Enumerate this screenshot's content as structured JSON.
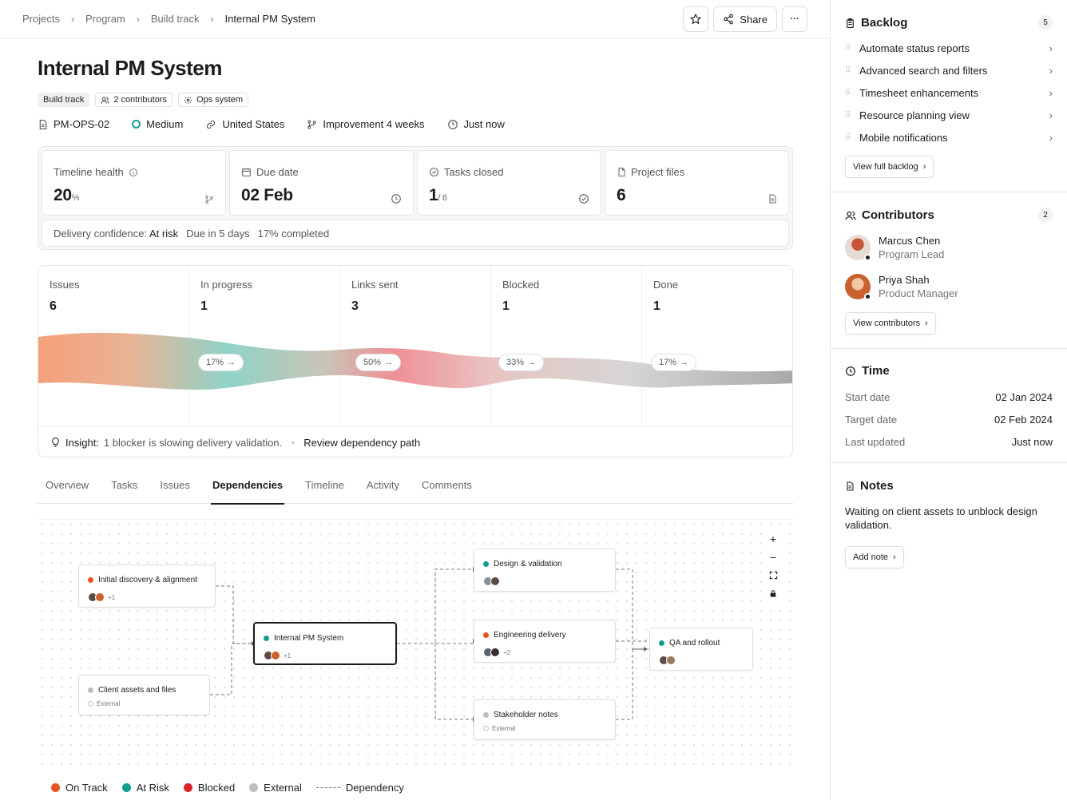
{
  "breadcrumbs": [
    "Projects",
    "Program",
    "Build track",
    "Internal PM System"
  ],
  "toolbar": {
    "share_label": "Share",
    "more_label": "···"
  },
  "project": {
    "title": "Internal PM System",
    "tags": [
      "Build track",
      "2 contributors",
      "Ops system"
    ],
    "meta": {
      "id": "PM-OPS-02",
      "priority": "Medium",
      "location": "United States",
      "branch": "Improvement 4 weeks",
      "updated": "Just now"
    }
  },
  "stats": {
    "timeline_health": {
      "label": "Timeline health",
      "value": "20",
      "unit": "%"
    },
    "due_date": {
      "label": "Due date",
      "value": "02 Feb"
    },
    "tasks_closed": {
      "label": "Tasks closed",
      "value": "1",
      "total": "/ 6"
    },
    "project_files": {
      "label": "Project files",
      "value": "6"
    },
    "confidence": {
      "label": "Delivery confidence:",
      "value": "At risk",
      "due": "Due in 5 days",
      "completed": "17% completed"
    }
  },
  "flow": {
    "columns": [
      {
        "label": "Issues",
        "value": "6"
      },
      {
        "label": "In progress",
        "value": "1"
      },
      {
        "label": "Links sent",
        "value": "3"
      },
      {
        "label": "Blocked",
        "value": "1"
      },
      {
        "label": "Done",
        "value": "1"
      }
    ],
    "rates": [
      "17%",
      "50%",
      "33%",
      "17%"
    ],
    "insight": {
      "label": "Insight:",
      "text": "1 blocker is slowing delivery validation.",
      "link": "Review dependency path"
    }
  },
  "tabs": [
    "Overview",
    "Tasks",
    "Issues",
    "Dependencies",
    "Timeline",
    "Activity",
    "Comments"
  ],
  "active_tab": "Dependencies",
  "graph": {
    "nodes": {
      "discovery": {
        "title": "Initial discovery & alignment",
        "more": "+1"
      },
      "client": {
        "title": "Client assets and files",
        "sub": "External"
      },
      "current": {
        "title": "Internal PM System",
        "more": "+1"
      },
      "design": {
        "title": "Design & validation"
      },
      "engineering": {
        "title": "Engineering delivery",
        "more": "+2"
      },
      "stakeholder": {
        "title": "Stakeholder notes",
        "sub": "External"
      },
      "qa": {
        "title": "QA and rollout"
      }
    },
    "zoom_controls": [
      "+",
      "−"
    ]
  },
  "legend": [
    {
      "label": "On Track",
      "color": "#e8531f"
    },
    {
      "label": "At Risk",
      "color": "#129d8f"
    },
    {
      "label": "Blocked",
      "color": "#e0232b"
    },
    {
      "label": "External",
      "color": "#bdbdbd"
    },
    {
      "label": "Dependency",
      "color": ""
    }
  ],
  "sidebar": {
    "backlog": {
      "title": "Backlog",
      "count": "5",
      "items": [
        "Automate status reports",
        "Advanced search and filters",
        "Timesheet enhancements",
        "Resource planning view",
        "Mobile notifications"
      ],
      "button": "View full backlog"
    },
    "contributors": {
      "title": "Contributors",
      "count": "2",
      "people": [
        {
          "name": "Marcus Chen",
          "role": "Program Lead"
        },
        {
          "name": "Priya Shah",
          "role": "Product Manager"
        }
      ],
      "button": "View contributors"
    },
    "time": {
      "title": "Time",
      "rows": [
        {
          "key": "Start date",
          "value": "02 Jan 2024"
        },
        {
          "key": "Target date",
          "value": "02 Feb 2024"
        },
        {
          "key": "Last updated",
          "value": "Just now"
        }
      ]
    },
    "notes": {
      "title": "Notes",
      "text": "Waiting on client assets to unblock design validation.",
      "button": "Add note"
    }
  }
}
